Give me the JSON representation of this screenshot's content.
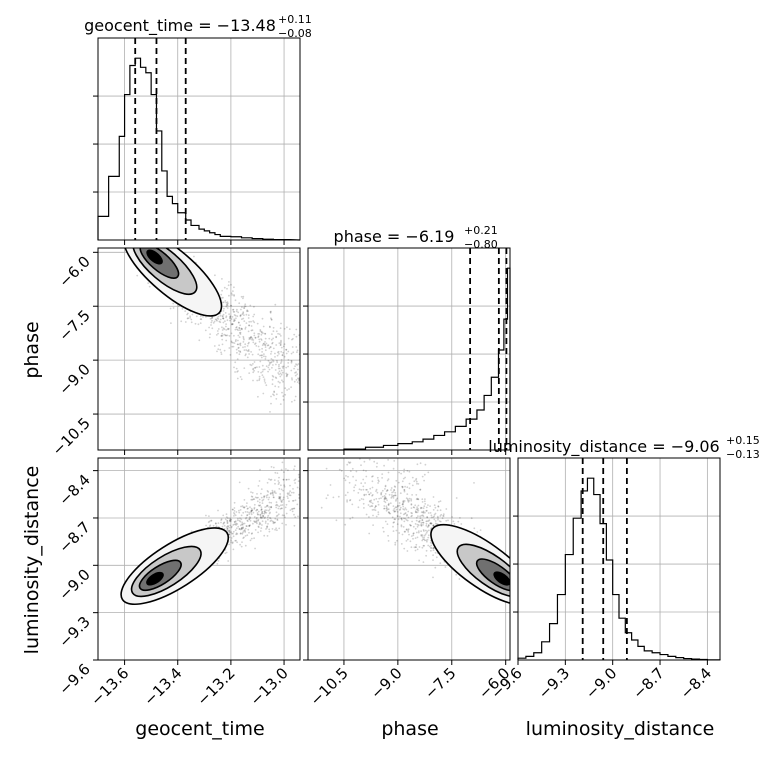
{
  "chart_data": {
    "type": "corner",
    "parameters": [
      "geocent_time",
      "phase",
      "luminosity_distance"
    ],
    "titles": [
      {
        "text": "geocent_time = −13.48",
        "plus": "+0.11",
        "minus": "−0.08"
      },
      {
        "text": "phase = −6.19",
        "plus": "+0.21",
        "minus": "−0.80"
      },
      {
        "text": "luminosity_distance = −9.06",
        "plus": "+0.15",
        "minus": "−0.13"
      }
    ],
    "axes": {
      "geocent_time": {
        "lim": [
          -13.7,
          -12.94
        ],
        "ticks": [
          -13.6,
          -13.4,
          -13.2,
          -13.0
        ],
        "tick_labels": [
          "−13.6",
          "−13.4",
          "−13.2",
          "−13.0"
        ]
      },
      "phase": {
        "lim": [
          -11.5,
          -5.88
        ],
        "ticks": [
          -10.5,
          -9.0,
          -7.5,
          -6.0
        ],
        "tick_labels": [
          "−10.5",
          "−9.0",
          "−7.5",
          "−6.0"
        ]
      },
      "luminosity_distance": {
        "lim": [
          -9.6,
          -8.32
        ],
        "ticks": [
          -9.6,
          -9.3,
          -9.0,
          -8.7,
          -8.4
        ],
        "tick_labels": [
          "−9.6",
          "−9.3",
          "−9.0",
          "−8.7",
          "−8.4"
        ]
      }
    },
    "histograms": {
      "geocent_time": {
        "bin_edges": [
          -13.7,
          -13.66,
          -13.62,
          -13.6,
          -13.58,
          -13.56,
          -13.54,
          -13.52,
          -13.5,
          -13.48,
          -13.46,
          -13.44,
          -13.42,
          -13.4,
          -13.37,
          -13.35,
          -13.32,
          -13.3,
          -13.28,
          -13.26,
          -13.24,
          -13.2,
          -13.16,
          -13.12,
          -13.08,
          -13.04,
          -12.98
        ],
        "counts": [
          0.13,
          0.35,
          0.57,
          0.8,
          0.96,
          1.0,
          0.95,
          0.92,
          0.8,
          0.6,
          0.38,
          0.24,
          0.2,
          0.15,
          0.11,
          0.08,
          0.06,
          0.05,
          0.04,
          0.03,
          0.02,
          0.018,
          0.012,
          0.008,
          0.004,
          0.002
        ],
        "quantiles": [
          -13.56,
          -13.48,
          -13.37
        ]
      },
      "phase": {
        "bin_edges": [
          -11.5,
          -10.5,
          -9.9,
          -9.4,
          -9.0,
          -8.6,
          -8.3,
          -8.0,
          -7.7,
          -7.4,
          -7.1,
          -6.8,
          -6.6,
          -6.4,
          -6.2,
          -6.05,
          -5.95,
          -5.88
        ],
        "counts": [
          0.0,
          0.005,
          0.015,
          0.025,
          0.035,
          0.045,
          0.06,
          0.08,
          0.1,
          0.13,
          0.17,
          0.22,
          0.3,
          0.4,
          0.55,
          0.72,
          1.0
        ],
        "quantiles": [
          -6.99,
          -6.19,
          -5.98
        ]
      },
      "luminosity_distance": {
        "bin_edges": [
          -9.6,
          -9.55,
          -9.5,
          -9.45,
          -9.4,
          -9.35,
          -9.3,
          -9.25,
          -9.2,
          -9.16,
          -9.12,
          -9.08,
          -9.04,
          -9.0,
          -8.96,
          -8.92,
          -8.88,
          -8.84,
          -8.8,
          -8.75,
          -8.7,
          -8.65,
          -8.6,
          -8.55,
          -8.5,
          -8.45,
          -8.4,
          -8.32
        ],
        "counts": [
          0.01,
          0.02,
          0.04,
          0.1,
          0.2,
          0.36,
          0.58,
          0.78,
          0.93,
          1.0,
          0.91,
          0.75,
          0.55,
          0.36,
          0.23,
          0.15,
          0.11,
          0.075,
          0.05,
          0.04,
          0.03,
          0.02,
          0.013,
          0.008,
          0.005,
          0.003,
          0.001
        ],
        "quantiles": [
          -9.19,
          -9.06,
          -8.91
        ]
      }
    },
    "contour_panels": [
      {
        "x": "geocent_time",
        "y": "phase",
        "peak": [
          -13.5,
          -6.05
        ],
        "tail_to": [
          -12.94,
          -9.6
        ],
        "spread": 0.35
      },
      {
        "x": "geocent_time",
        "y": "luminosity_distance",
        "peak": [
          -13.5,
          -9.1
        ],
        "tail_to": [
          -12.94,
          -8.5
        ],
        "spread": 0.25
      },
      {
        "x": "phase",
        "y": "luminosity_distance",
        "peak": [
          -6.0,
          -9.1
        ],
        "tail_to": [
          -10.0,
          -8.45
        ],
        "spread": 0.35
      }
    ],
    "grid": true
  }
}
